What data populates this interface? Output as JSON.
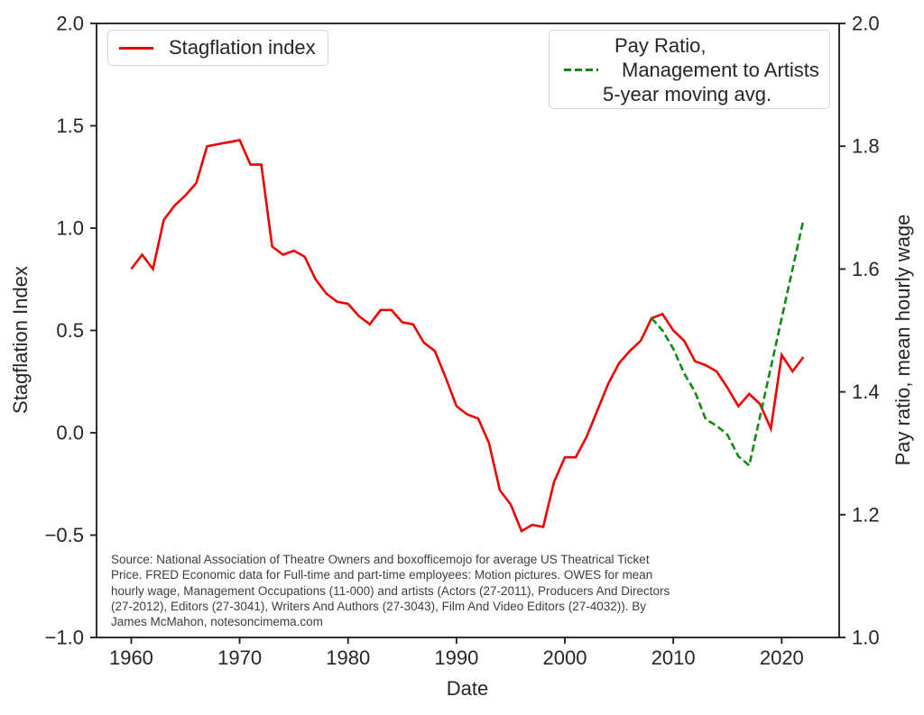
{
  "figure": {
    "xlabel": "Date",
    "ylabel_left": "Stagflation Index",
    "ylabel_right": "Pay ratio, mean hourly wage"
  },
  "legend_left": {
    "label": "Stagflation index"
  },
  "legend_right": {
    "lines": [
      "Pay Ratio,",
      "Management to Artists",
      "5-year moving avg."
    ]
  },
  "source_note": {
    "lines": [
      "Source: National Association of Theatre Owners and boxofficemojo for average US Theatrical Ticket",
      "Price. FRED Economic data for Full-time and part-time employees: Motion pictures. OWES for mean",
      "hourly wage, Management Occupations (11-000) and artists (Actors (27-2011), Producers And Directors",
      "(27-2012), Editors (27-3041), Writers And Authors (27-3043), Film And Video Editors (27-4032)). By",
      "James McMahon, notesoncimema.com"
    ]
  },
  "colors": {
    "stagflation": "#ee0000",
    "pay_ratio": "#128912",
    "axis": "#1a1a1a",
    "tick_text": "#262626"
  },
  "chart_data": {
    "type": "line",
    "title": "",
    "xlabel": "Date",
    "xlim": [
      1956.8,
      2025.3
    ],
    "x_ticks": [
      1960,
      1970,
      1980,
      1990,
      2000,
      2010,
      2020
    ],
    "grid": false,
    "axes": {
      "left": {
        "label": "Stagflation Index",
        "ylim": [
          -1.0,
          2.0
        ],
        "ticks": [
          2.0,
          1.5,
          1.0,
          0.5,
          0.0,
          -0.5,
          -1.0
        ]
      },
      "right": {
        "label": "Pay ratio, mean hourly wage",
        "ylim": [
          1.0,
          2.0
        ],
        "ticks": [
          2.0,
          1.8,
          1.6,
          1.4,
          1.2,
          1.0
        ]
      }
    },
    "legend_positions": [
      "upper left",
      "upper right"
    ],
    "series": [
      {
        "name": "Stagflation index",
        "axis": "left",
        "style": "solid",
        "color": "#ee0000",
        "x": [
          1960,
          1961,
          1962,
          1963,
          1964,
          1965,
          1966,
          1967,
          1968,
          1969,
          1970,
          1971,
          1972,
          1973,
          1974,
          1975,
          1976,
          1977,
          1978,
          1979,
          1980,
          1981,
          1982,
          1983,
          1984,
          1985,
          1986,
          1987,
          1988,
          1989,
          1990,
          1991,
          1992,
          1993,
          1994,
          1995,
          1996,
          1997,
          1998,
          1999,
          2000,
          2001,
          2002,
          2003,
          2004,
          2005,
          2006,
          2007,
          2008,
          2009,
          2010,
          2011,
          2012,
          2013,
          2014,
          2015,
          2016,
          2017,
          2018,
          2019,
          2020,
          2021,
          2022
        ],
        "values": [
          0.8,
          0.87,
          0.8,
          1.04,
          1.11,
          1.16,
          1.22,
          1.4,
          1.41,
          1.42,
          1.43,
          1.31,
          1.31,
          0.91,
          0.87,
          0.89,
          0.86,
          0.75,
          0.68,
          0.64,
          0.63,
          0.57,
          0.53,
          0.6,
          0.6,
          0.54,
          0.53,
          0.44,
          0.4,
          0.27,
          0.13,
          0.09,
          0.07,
          -0.05,
          -0.28,
          -0.35,
          -0.48,
          -0.45,
          -0.46,
          -0.24,
          -0.12,
          -0.12,
          -0.02,
          0.11,
          0.24,
          0.34,
          0.4,
          0.45,
          0.56,
          0.58,
          0.5,
          0.45,
          0.35,
          0.33,
          0.3,
          0.22,
          0.13,
          0.19,
          0.14,
          0.02,
          0.38,
          0.3,
          0.37
        ]
      },
      {
        "name": "Pay Ratio, Management to Artists 5-year moving avg.",
        "axis": "right",
        "style": "dashed",
        "color": "#128912",
        "x": [
          2008,
          2009,
          2010,
          2011,
          2012,
          2013,
          2014,
          2015,
          2016,
          2017,
          2018,
          2019,
          2020,
          2021,
          2022
        ],
        "values": [
          1.52,
          1.5,
          1.47,
          1.43,
          1.4,
          1.355,
          1.345,
          1.33,
          1.295,
          1.28,
          1.36,
          1.44,
          1.52,
          1.6,
          1.68
        ]
      }
    ]
  }
}
